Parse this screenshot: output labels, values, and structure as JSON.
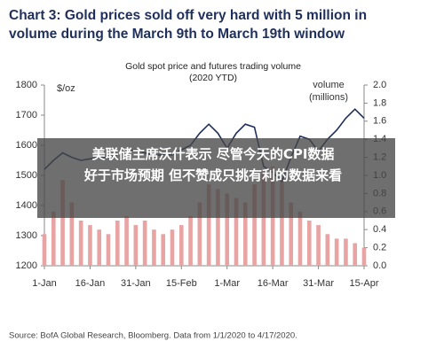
{
  "chart_data": {
    "type": "bar-line",
    "title": "Chart 3: Gold prices sold off very hard with 5 million in volume during the March 9th to March 19th window",
    "subtitle": "Gold spot price and futures trading volume (2020 YTD)",
    "y_label": "$/oz",
    "y2_label": "volume (millions)",
    "source": "Source: BofA Global Research, Bloomberg. Data from 1/1/2020 to 4/17/2020.",
    "overlay_caption": "美联储主席沃什表示 尽管今天的CPI数据好于市场预期 但不赞成只挑有利的数据来看",
    "categories": [
      "1-Jan",
      null,
      null,
      null,
      null,
      "16-Jan",
      null,
      null,
      null,
      null,
      "31-Jan",
      null,
      null,
      null,
      null,
      "15-Feb",
      null,
      null,
      null,
      null,
      "1-Mar",
      null,
      null,
      null,
      null,
      "16-Mar",
      null,
      null,
      null,
      null,
      "31-Mar",
      null,
      null,
      null,
      null,
      "15-Apr"
    ],
    "series": [
      {
        "type": "bar",
        "axis": "y2",
        "color": "#e8a3a3",
        "values": [
          0.35,
          0.6,
          0.95,
          0.7,
          0.5,
          0.45,
          0.4,
          0.35,
          0.5,
          0.55,
          0.45,
          0.5,
          0.4,
          0.35,
          0.4,
          0.45,
          0.55,
          0.7,
          0.9,
          0.85,
          0.8,
          0.75,
          0.7,
          0.9,
          1.05,
          1.1,
          0.95,
          0.7,
          0.6,
          0.5,
          0.45,
          0.35,
          0.3,
          0.3,
          0.25,
          0.2
        ]
      },
      {
        "type": "line",
        "axis": "y",
        "color": "#1f2f5c",
        "values": [
          1520,
          1550,
          1575,
          1560,
          1550,
          1555,
          1560,
          1558,
          1570,
          1580,
          1585,
          1575,
          1565,
          1570,
          1568,
          1585,
          1600,
          1640,
          1670,
          1640,
          1590,
          1640,
          1670,
          1660,
          1530,
          1510,
          1480,
          1560,
          1630,
          1620,
          1580,
          1620,
          1650,
          1690,
          1720,
          1690
        ]
      }
    ],
    "ylim": [
      1200,
      1800
    ],
    "yticks": [
      1200,
      1300,
      1400,
      1500,
      1600,
      1700,
      1800
    ],
    "y2lim": [
      0,
      2
    ],
    "y2ticks": [
      {
        "value": 0,
        "label": "0.0"
      },
      {
        "value": 0.2,
        "label": "0.2"
      },
      {
        "value": 0.4,
        "label": "0.4"
      },
      {
        "value": 0.6,
        "label": "0.6"
      },
      {
        "value": 0.8,
        "label": "0.8"
      },
      {
        "value": 1,
        "label": "1.0"
      },
      {
        "value": 1.2,
        "label": "1.2"
      },
      {
        "value": 1.4,
        "label": "1.4"
      },
      {
        "value": 1.6,
        "label": "1.6"
      },
      {
        "value": 1.8,
        "label": "1.8"
      },
      {
        "value": 2,
        "label": "2.0"
      }
    ]
  }
}
